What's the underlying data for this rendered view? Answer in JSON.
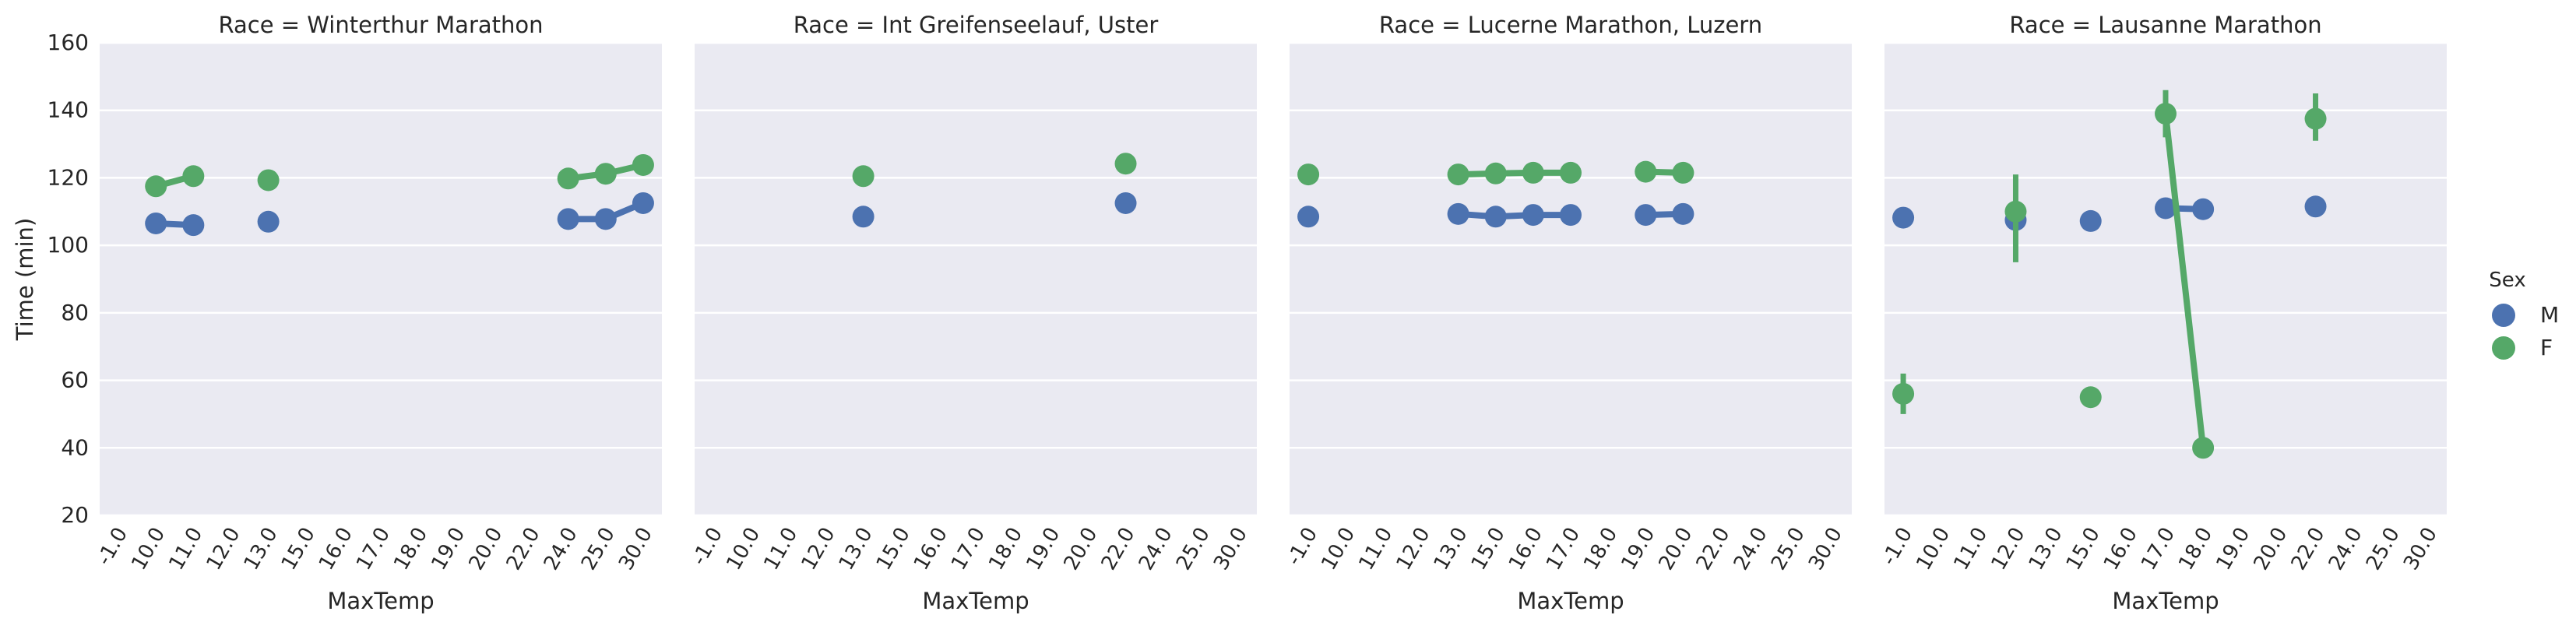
{
  "chart_data": {
    "type": "line",
    "subtype": "pointplot-facet-grid",
    "ylabel": "Time (min)",
    "xlabel": "MaxTemp",
    "ylim": [
      20,
      160
    ],
    "y_ticks": [
      "20",
      "40",
      "60",
      "80",
      "100",
      "120",
      "140",
      "160"
    ],
    "x_categories": [
      "-1.0",
      "10.0",
      "11.0",
      "12.0",
      "13.0",
      "15.0",
      "16.0",
      "17.0",
      "18.0",
      "19.0",
      "20.0",
      "22.0",
      "24.0",
      "25.0",
      "30.0"
    ],
    "grid": true,
    "legend": {
      "title": "Sex",
      "placement": "right",
      "entries": [
        {
          "label": "M",
          "color": "#4c72b0"
        },
        {
          "label": "F",
          "color": "#55a868"
        }
      ]
    },
    "facets": [
      {
        "title": "Race = Winterthur Marathon",
        "series": [
          {
            "name": "M",
            "color": "#4c72b0",
            "points": [
              {
                "x": "10.0",
                "y": 106.5
              },
              {
                "x": "11.0",
                "y": 106.0
              },
              {
                "x": "13.0",
                "y": 107.0
              },
              {
                "x": "24.0",
                "y": 107.8
              },
              {
                "x": "25.0",
                "y": 107.8
              },
              {
                "x": "30.0",
                "y": 112.5
              }
            ]
          },
          {
            "name": "F",
            "color": "#55a868",
            "points": [
              {
                "x": "10.0",
                "y": 117.5
              },
              {
                "x": "11.0",
                "y": 120.5
              },
              {
                "x": "13.0",
                "y": 119.3
              },
              {
                "x": "24.0",
                "y": 119.8
              },
              {
                "x": "25.0",
                "y": 121.2
              },
              {
                "x": "30.0",
                "y": 123.8,
                "ci": [
                  122,
                  125.5
                ]
              }
            ]
          }
        ]
      },
      {
        "title": "Race = Int Greifenseelauf, Uster",
        "series": [
          {
            "name": "M",
            "color": "#4c72b0",
            "points": [
              {
                "x": "13.0",
                "y": 108.5
              },
              {
                "x": "22.0",
                "y": 112.5
              }
            ]
          },
          {
            "name": "F",
            "color": "#55a868",
            "points": [
              {
                "x": "13.0",
                "y": 120.5
              },
              {
                "x": "22.0",
                "y": 124.2
              }
            ]
          }
        ]
      },
      {
        "title": "Race = Lucerne Marathon, Luzern",
        "series": [
          {
            "name": "M",
            "color": "#4c72b0",
            "points": [
              {
                "x": "-1.0",
                "y": 108.5
              },
              {
                "x": "13.0",
                "y": 109.3
              },
              {
                "x": "15.0",
                "y": 108.5
              },
              {
                "x": "16.0",
                "y": 109.0
              },
              {
                "x": "17.0",
                "y": 109.0
              },
              {
                "x": "19.0",
                "y": 109.0
              },
              {
                "x": "20.0",
                "y": 109.3
              }
            ]
          },
          {
            "name": "F",
            "color": "#55a868",
            "points": [
              {
                "x": "-1.0",
                "y": 121.0
              },
              {
                "x": "13.0",
                "y": 121.0
              },
              {
                "x": "15.0",
                "y": 121.3
              },
              {
                "x": "16.0",
                "y": 121.5
              },
              {
                "x": "17.0",
                "y": 121.5
              },
              {
                "x": "19.0",
                "y": 121.8
              },
              {
                "x": "20.0",
                "y": 121.5
              }
            ]
          }
        ]
      },
      {
        "title": "Race = Lausanne Marathon",
        "series": [
          {
            "name": "M",
            "color": "#4c72b0",
            "points": [
              {
                "x": "-1.0",
                "y": 108.2
              },
              {
                "x": "12.0",
                "y": 107.5
              },
              {
                "x": "15.0",
                "y": 107.2
              },
              {
                "x": "17.0",
                "y": 111.0
              },
              {
                "x": "18.0",
                "y": 110.7
              },
              {
                "x": "22.0",
                "y": 111.5
              }
            ]
          },
          {
            "name": "F",
            "color": "#55a868",
            "points": [
              {
                "x": "-1.0",
                "y": 56.0,
                "ci": [
                  50,
                  62
                ]
              },
              {
                "x": "12.0",
                "y": 110.0,
                "ci": [
                  95,
                  121
                ]
              },
              {
                "x": "15.0",
                "y": 55.0
              },
              {
                "x": "17.0",
                "y": 139.0,
                "ci": [
                  132,
                  146
                ]
              },
              {
                "x": "18.0",
                "y": 40.0
              },
              {
                "x": "22.0",
                "y": 137.5,
                "ci": [
                  131,
                  145
                ]
              }
            ]
          }
        ]
      }
    ]
  }
}
